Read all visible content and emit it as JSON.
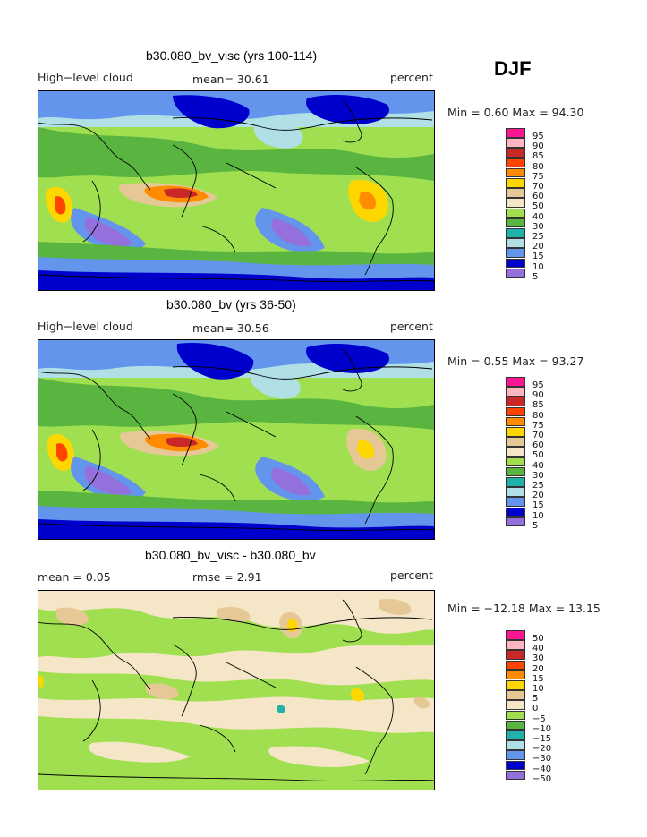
{
  "season": "DJF",
  "panels": [
    {
      "title": "b30.080_bv_visc (yrs 100-114)",
      "left_label": "High−level cloud",
      "center_label": "mean=  30.61",
      "right_label": "percent",
      "range_text": "Min =   0.60 Max =  94.30",
      "colorbar": {
        "labels": [
          "95",
          "90",
          "85",
          "80",
          "75",
          "70",
          "60",
          "50",
          "40",
          "30",
          "25",
          "20",
          "15",
          "10",
          "5"
        ],
        "colors": [
          "#ff1493",
          "#ffb6c1",
          "#c82828",
          "#ff4500",
          "#ff8c00",
          "#ffd700",
          "#e6c896",
          "#f5e6c8",
          "#a0e050",
          "#5ab440",
          "#20b2aa",
          "#b0e0e6",
          "#6495ed",
          "#0000cd",
          "#9370db"
        ]
      }
    },
    {
      "title": "b30.080_bv (yrs 36-50)",
      "left_label": "High−level cloud",
      "center_label": "mean=  30.56",
      "right_label": "percent",
      "range_text": "Min =   0.55 Max =  93.27",
      "colorbar": {
        "labels": [
          "95",
          "90",
          "85",
          "80",
          "75",
          "70",
          "60",
          "50",
          "40",
          "30",
          "25",
          "20",
          "15",
          "10",
          "5"
        ],
        "colors": [
          "#ff1493",
          "#ffb6c1",
          "#c82828",
          "#ff4500",
          "#ff8c00",
          "#ffd700",
          "#e6c896",
          "#f5e6c8",
          "#a0e050",
          "#5ab440",
          "#20b2aa",
          "#b0e0e6",
          "#6495ed",
          "#0000cd",
          "#9370db"
        ]
      }
    },
    {
      "title": "b30.080_bv_visc - b30.080_bv",
      "left_label": "mean =   0.05",
      "center_label": "rmse =   2.91",
      "right_label": "percent",
      "range_text": "Min = −12.18 Max =  13.15",
      "colorbar": {
        "labels": [
          "50",
          "40",
          "30",
          "20",
          "15",
          "10",
          "5",
          "0",
          "−5",
          "−10",
          "−15",
          "−20",
          "−30",
          "−40",
          "−50"
        ],
        "colors": [
          "#ff1493",
          "#ffb6c1",
          "#c82828",
          "#ff4500",
          "#ff8c00",
          "#ffd700",
          "#e6c896",
          "#f5e6c8",
          "#a0e050",
          "#5ab440",
          "#20b2aa",
          "#b0e0e6",
          "#6495ed",
          "#0000cd",
          "#9370db"
        ]
      }
    }
  ]
}
